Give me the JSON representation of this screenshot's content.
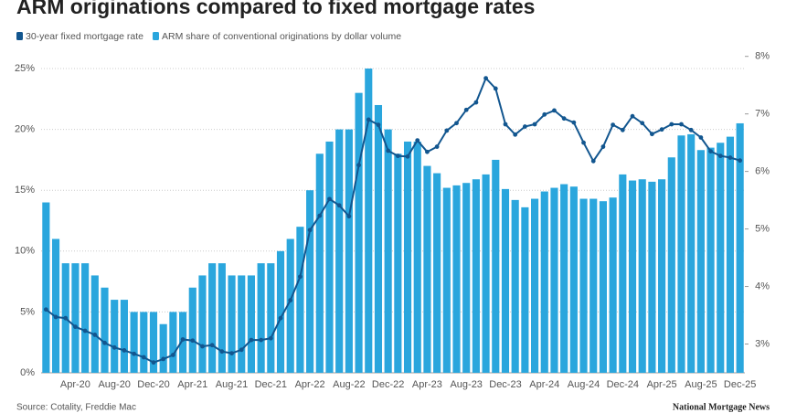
{
  "chart_data": {
    "type": "combo",
    "title": "ARM originations compared to fixed mortgage rates",
    "source": "Source: Cotality, Freddie Mac",
    "logo": "National Mortgage News",
    "categories": [
      null,
      null,
      null,
      "Apr-20",
      null,
      null,
      null,
      "Aug-20",
      null,
      null,
      null,
      "Dec-20",
      null,
      null,
      null,
      "Apr-21",
      null,
      null,
      null,
      "Aug-21",
      null,
      null,
      null,
      "Dec-21",
      null,
      null,
      null,
      "Apr-22",
      null,
      null,
      null,
      "Aug-22",
      null,
      null,
      null,
      "Dec-22",
      null,
      null,
      null,
      "Apr-23",
      null,
      null,
      null,
      "Aug-23",
      null,
      null,
      null,
      "Dec-23",
      null,
      null,
      null,
      "Apr-24",
      null,
      null,
      null,
      "Aug-24",
      null,
      null,
      null,
      "Dec-24",
      null,
      null,
      null,
      "Apr-25",
      null,
      null,
      null,
      "Aug-25",
      null,
      null,
      null,
      "Dec-25"
    ],
    "series": [
      {
        "name": "30-year fixed mortgage rate",
        "type": "line",
        "axis": "y2",
        "color": "#12568f",
        "values": [
          3.6,
          3.47,
          3.45,
          3.3,
          3.23,
          3.16,
          3.02,
          2.94,
          2.89,
          2.83,
          2.77,
          2.68,
          2.74,
          2.81,
          3.08,
          3.06,
          2.96,
          2.98,
          2.87,
          2.84,
          2.9,
          3.07,
          3.07,
          3.1,
          3.45,
          3.76,
          4.17,
          4.98,
          5.23,
          5.52,
          5.41,
          5.22,
          6.11,
          6.9,
          6.81,
          6.36,
          6.27,
          6.26,
          6.54,
          6.34,
          6.43,
          6.71,
          6.84,
          7.07,
          7.2,
          7.62,
          7.44,
          6.82,
          6.64,
          6.78,
          6.82,
          6.99,
          7.06,
          6.92,
          6.85,
          6.5,
          6.18,
          6.43,
          6.81,
          6.72,
          6.96,
          6.84,
          6.65,
          6.73,
          6.82,
          6.82,
          6.72,
          6.59,
          6.35,
          6.27,
          6.24,
          6.19
        ]
      },
      {
        "name": "ARM share of conventional originations by dollar volume",
        "type": "bar",
        "color": "#2aa6dd",
        "values": [
          14,
          11,
          9,
          9,
          9,
          8,
          7,
          6,
          6,
          5,
          5,
          5,
          4,
          5,
          5,
          7,
          8,
          9,
          9,
          8,
          8,
          8,
          9,
          9,
          10,
          11,
          12,
          15,
          18,
          19,
          20,
          20,
          23,
          25,
          22,
          20,
          18,
          19,
          19,
          17,
          16.4,
          15.2,
          15.4,
          15.6,
          15.9,
          16.3,
          17.5,
          15.1,
          14.2,
          13.6,
          14.3,
          14.9,
          15.2,
          15.5,
          15.3,
          14.3,
          14.3,
          14.1,
          14.4,
          16.3,
          15.8,
          15.9,
          15.7,
          15.9,
          17.7,
          19.5,
          19.6,
          18.3,
          18.5,
          18.9,
          19.4,
          20.5
        ]
      }
    ],
    "ylim": [
      0,
      26
    ],
    "yticks": [
      {
        "value": 0,
        "label": "0%"
      },
      {
        "value": 5,
        "label": "5%"
      },
      {
        "value": 10,
        "label": "10%"
      },
      {
        "value": 15,
        "label": "15%"
      },
      {
        "value": 20,
        "label": "20%"
      },
      {
        "value": 25,
        "label": "25%"
      }
    ],
    "y2lim": [
      2.5,
      8
    ],
    "y2ticks": [
      {
        "value": 3,
        "label": "3%"
      },
      {
        "value": 4,
        "label": "4%"
      },
      {
        "value": 5,
        "label": "5%"
      },
      {
        "value": 6,
        "label": "6%"
      },
      {
        "value": 7,
        "label": "7%"
      },
      {
        "value": 8,
        "label": "8%"
      }
    ],
    "grid": true
  }
}
